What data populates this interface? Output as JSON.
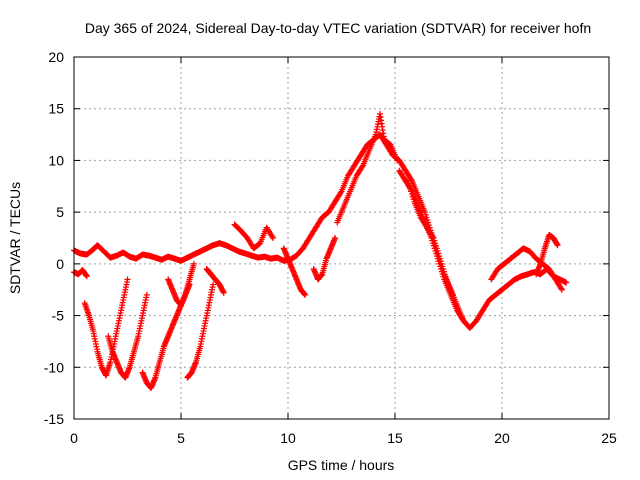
{
  "chart_data": {
    "type": "scatter",
    "title": "Day 365 of 2024, Sidereal Day-to-day VTEC variation (SDTVAR) for receiver hofn",
    "xlabel": "GPS time / hours",
    "ylabel": "SDTVAR / TECUs",
    "xlim": [
      0,
      25
    ],
    "ylim": [
      -15,
      20
    ],
    "xticks": [
      0,
      5,
      10,
      15,
      20,
      25
    ],
    "yticks": [
      -15,
      -10,
      -5,
      0,
      5,
      10,
      15,
      20
    ],
    "grid": true,
    "marker": "+",
    "series": [
      {
        "name": "main",
        "color": "#ff0000",
        "x": [
          0.0,
          0.3,
          0.6,
          0.9,
          1.1,
          1.4,
          1.7,
          2.0,
          2.3,
          2.6,
          2.9,
          3.2,
          3.5,
          3.8,
          4.1,
          4.4,
          4.7,
          5.0,
          5.3,
          5.6,
          5.9,
          6.2,
          6.5,
          6.8,
          7.1,
          7.4,
          7.7,
          8.0,
          8.3,
          8.6,
          8.9,
          9.2,
          9.5,
          9.8,
          10.1,
          10.4,
          10.7,
          11.0,
          11.3,
          11.6,
          11.9,
          12.2,
          12.5,
          12.8,
          13.1,
          13.4,
          13.7,
          14.0,
          14.3,
          14.6,
          14.9,
          15.2,
          15.5,
          15.8,
          16.1,
          16.4,
          16.7,
          17.0,
          17.3,
          17.6,
          17.9,
          18.2,
          18.5,
          18.8,
          19.1,
          19.4,
          19.7,
          20.0,
          20.3,
          20.6,
          20.9,
          21.2,
          21.5,
          21.8,
          22.1,
          22.4,
          22.7,
          23.0
        ],
        "y": [
          1.3,
          1.0,
          0.9,
          1.4,
          1.8,
          1.2,
          0.6,
          0.8,
          1.1,
          0.7,
          0.5,
          0.9,
          0.8,
          0.6,
          0.4,
          0.7,
          0.5,
          0.3,
          0.6,
          0.9,
          1.2,
          1.5,
          1.8,
          2.0,
          1.8,
          1.5,
          1.2,
          1.0,
          0.8,
          0.6,
          0.7,
          0.5,
          0.6,
          0.3,
          0.4,
          0.8,
          1.5,
          2.5,
          3.5,
          4.5,
          5.0,
          6.0,
          7.0,
          8.5,
          9.5,
          10.5,
          11.5,
          12.0,
          12.5,
          11.5,
          10.5,
          10.0,
          9.0,
          8.0,
          6.5,
          5.0,
          3.0,
          1.0,
          -1.0,
          -2.5,
          -4.0,
          -5.5,
          -6.2,
          -5.5,
          -4.5,
          -3.5,
          -3.0,
          -2.5,
          -2.0,
          -1.5,
          -1.2,
          -1.0,
          -0.8,
          -1.0,
          -0.5,
          -1.2,
          -1.5,
          -1.8
        ]
      },
      {
        "name": "pass-a",
        "color": "#ff0000",
        "x": [
          0.5,
          0.7,
          0.9,
          1.1,
          1.3,
          1.5,
          1.7,
          1.9,
          2.1,
          2.3,
          2.5
        ],
        "y": [
          -3.8,
          -5.0,
          -6.5,
          -8.5,
          -10.0,
          -10.8,
          -9.5,
          -7.5,
          -5.5,
          -3.5,
          -1.5
        ]
      },
      {
        "name": "pass-b",
        "color": "#ff0000",
        "x": [
          1.6,
          1.8,
          2.0,
          2.2,
          2.4,
          2.6,
          2.8,
          3.0,
          3.2,
          3.4
        ],
        "y": [
          -7.0,
          -8.5,
          -9.5,
          -10.5,
          -11.0,
          -10.0,
          -8.5,
          -7.0,
          -5.0,
          -3.0
        ]
      },
      {
        "name": "pass-c",
        "color": "#ff0000",
        "x": [
          3.2,
          3.4,
          3.6,
          3.8,
          4.0,
          4.2,
          4.4,
          4.6,
          4.8,
          5.0,
          5.2,
          5.4
        ],
        "y": [
          -10.5,
          -11.5,
          -12.0,
          -11.0,
          -9.5,
          -8.0,
          -7.0,
          -6.0,
          -5.0,
          -4.0,
          -3.0,
          -2.0
        ]
      },
      {
        "name": "pass-d",
        "color": "#ff0000",
        "x": [
          5.3,
          5.5,
          5.7,
          5.9,
          6.1,
          6.3,
          6.5
        ],
        "y": [
          -11.0,
          -10.5,
          -9.5,
          -8.0,
          -6.0,
          -4.0,
          -2.0
        ]
      },
      {
        "name": "pass-e",
        "color": "#ff0000",
        "x": [
          4.4,
          4.6,
          4.8,
          5.0,
          5.2,
          5.4,
          5.6
        ],
        "y": [
          -1.5,
          -2.5,
          -3.5,
          -4.0,
          -3.0,
          -1.5,
          0.0
        ]
      },
      {
        "name": "pass-f",
        "color": "#ff0000",
        "x": [
          6.2,
          6.4,
          6.6,
          6.8,
          7.0
        ],
        "y": [
          -0.5,
          -1.0,
          -1.5,
          -2.0,
          -2.8
        ]
      },
      {
        "name": "pass-g",
        "color": "#ff0000",
        "x": [
          7.5,
          7.8,
          8.1,
          8.4,
          8.7,
          9.0,
          9.3
        ],
        "y": [
          3.8,
          3.2,
          2.5,
          1.5,
          2.0,
          3.5,
          2.5
        ]
      },
      {
        "name": "pass-h",
        "color": "#ff0000",
        "x": [
          9.8,
          10.0,
          10.2,
          10.4,
          10.6,
          10.8
        ],
        "y": [
          1.5,
          0.5,
          -0.5,
          -1.5,
          -2.5,
          -3.0
        ]
      },
      {
        "name": "pass-i",
        "color": "#ff0000",
        "x": [
          11.2,
          11.4,
          11.6,
          11.8,
          12.0,
          12.2
        ],
        "y": [
          -0.5,
          -1.5,
          -1.0,
          0.5,
          1.5,
          2.5
        ]
      },
      {
        "name": "pass-j",
        "color": "#ff0000",
        "x": [
          12.3,
          12.6,
          12.9,
          13.2,
          13.5,
          13.8,
          14.1,
          14.3,
          14.5,
          14.8,
          15.1
        ],
        "y": [
          4.0,
          5.5,
          7.0,
          8.5,
          9.5,
          11.0,
          12.5,
          14.5,
          12.0,
          11.5,
          10.0
        ]
      },
      {
        "name": "pass-k",
        "color": "#ff0000",
        "x": [
          15.2,
          15.5,
          15.8,
          16.1,
          16.4,
          16.7,
          17.0,
          17.3,
          17.6,
          17.9,
          18.2
        ],
        "y": [
          9.0,
          8.0,
          7.0,
          5.5,
          4.0,
          2.5,
          0.5,
          -1.5,
          -3.0,
          -4.5,
          -5.5
        ]
      },
      {
        "name": "pass-l",
        "color": "#ff0000",
        "x": [
          15.6,
          15.9,
          16.2,
          16.5,
          16.8,
          17.1,
          17.4,
          17.7
        ],
        "y": [
          8.0,
          6.0,
          4.5,
          3.5,
          2.5,
          0.5,
          -1.5,
          -3.0
        ]
      },
      {
        "name": "pass-m",
        "color": "#ff0000",
        "x": [
          19.5,
          19.8,
          20.1,
          20.4,
          20.7,
          21.0,
          21.3,
          21.6,
          21.9,
          22.2,
          22.5,
          22.8
        ],
        "y": [
          -1.5,
          -0.5,
          0.0,
          0.5,
          1.0,
          1.5,
          1.2,
          0.5,
          0.0,
          -0.5,
          -1.5,
          -2.5
        ]
      },
      {
        "name": "pass-n",
        "color": "#ff0000",
        "x": [
          21.6,
          21.8,
          22.0,
          22.2,
          22.4,
          22.6
        ],
        "y": [
          -1.0,
          0.0,
          1.5,
          2.8,
          2.5,
          1.8
        ]
      },
      {
        "name": "pass-o",
        "color": "#ff0000",
        "x": [
          0.0,
          0.2,
          0.4,
          0.6
        ],
        "y": [
          -0.8,
          -1.0,
          -0.6,
          -1.2
        ]
      }
    ]
  }
}
